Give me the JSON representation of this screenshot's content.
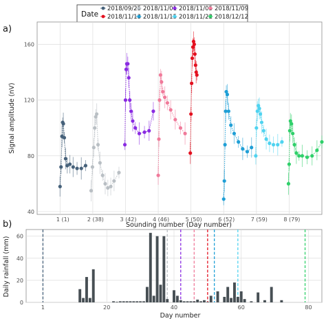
{
  "chart_data": [
    {
      "panel_label": "a)",
      "type": "line",
      "xlabel": "Sounding number (Day number)",
      "ylabel": "Signal amplitude (nV)",
      "xlim": [
        0.3,
        9
      ],
      "ylim": [
        38,
        176
      ],
      "yticks": [
        40,
        80,
        120,
        160
      ],
      "xtick_labels": [
        {
          "x": 1,
          "label": "1 (1)"
        },
        {
          "x": 2,
          "label": "2 (38)"
        },
        {
          "x": 3,
          "label": "3 (42)"
        },
        {
          "x": 4,
          "label": "4 (46)"
        },
        {
          "x": 5,
          "label": "5 (50)"
        },
        {
          "x": 6,
          "label": "6 (52)"
        },
        {
          "x": 7,
          "label": "7 (59)"
        },
        {
          "x": 8,
          "label": "8 (79)"
        }
      ],
      "grid": true,
      "legend": {
        "title": "Date",
        "position": "top",
        "entries": [
          {
            "label": "2018/09/25",
            "color": "#46617a"
          },
          {
            "label": "2018/11/01",
            "color": "#b9bfc4"
          },
          {
            "label": "2018/11/05",
            "color": "#8a2be2"
          },
          {
            "label": "2018/11/09",
            "color": "#f07a9a"
          },
          {
            "label": "2018/11/13",
            "color": "#e3101f"
          },
          {
            "label": "2018/11/15",
            "color": "#1f9fd6"
          },
          {
            "label": "2018/11/22",
            "color": "#4fd3f0"
          },
          {
            "label": "2018/12/12",
            "color": "#2fd06a"
          }
        ]
      },
      "series": [
        {
          "name": "2018/09/25",
          "color": "#46617a",
          "x": [
            1.0,
            1.03,
            1.06,
            1.08,
            1.1,
            1.13,
            1.17,
            1.22,
            1.3,
            1.4,
            1.52,
            1.65,
            1.78
          ],
          "y": [
            58,
            72,
            94,
            104,
            103,
            93,
            78,
            73,
            74,
            72,
            71,
            71,
            73
          ]
        },
        {
          "name": "2018/11/01",
          "color": "#b9bfc4",
          "x": [
            1.95,
            1.99,
            2.03,
            2.06,
            2.09,
            2.12,
            2.16,
            2.22,
            2.3,
            2.38,
            2.46,
            2.55,
            2.65,
            2.8
          ],
          "y": [
            55,
            72,
            86,
            100,
            108,
            110,
            88,
            75,
            66,
            60,
            57,
            58,
            62,
            68
          ]
        },
        {
          "name": "2018/11/05",
          "color": "#8a2be2",
          "x": [
            2.98,
            3.0,
            3.02,
            3.04,
            3.07,
            3.1,
            3.13,
            3.17,
            3.22,
            3.3,
            3.42,
            3.58,
            3.72,
            3.85
          ],
          "y": [
            88,
            120,
            142,
            146,
            146,
            136,
            120,
            112,
            105,
            100,
            96,
            97,
            98,
            112
          ]
        },
        {
          "name": "2018/11/09",
          "color": "#f07a9a",
          "x": [
            4.0,
            4.02,
            4.04,
            4.07,
            4.1,
            4.14,
            4.2,
            4.28,
            4.38,
            4.52,
            4.68,
            4.82
          ],
          "y": [
            66,
            92,
            120,
            138,
            133,
            126,
            122,
            118,
            113,
            106,
            100,
            96
          ]
        },
        {
          "name": "2018/11/13",
          "color": "#e3101f",
          "x": [
            4.98,
            5.0,
            5.02,
            5.04,
            5.06,
            5.08,
            5.1,
            5.12,
            5.14,
            5.16,
            5.18
          ],
          "y": [
            82,
            110,
            132,
            150,
            158,
            162,
            160,
            153,
            145,
            140,
            138
          ]
        },
        {
          "name": "2018/11/15",
          "color": "#1f9fd6",
          "x": [
            6.0,
            6.02,
            6.04,
            6.06,
            6.08,
            6.11,
            6.15,
            6.22,
            6.32,
            6.45,
            6.58,
            6.72,
            6.85
          ],
          "y": [
            49,
            62,
            88,
            112,
            126,
            124,
            112,
            102,
            96,
            90,
            85,
            83,
            86
          ]
        },
        {
          "name": "2018/11/22",
          "color": "#4fd3f0",
          "x": [
            6.98,
            7.0,
            7.03,
            7.06,
            7.09,
            7.12,
            7.16,
            7.22,
            7.3,
            7.4,
            7.52,
            7.65,
            7.78
          ],
          "y": [
            80,
            100,
            112,
            116,
            114,
            110,
            104,
            98,
            92,
            89,
            88,
            88,
            90
          ]
        },
        {
          "name": "2018/12/12",
          "color": "#2fd06a",
          "x": [
            7.98,
            8.0,
            8.02,
            8.04,
            8.07,
            8.11,
            8.16,
            8.22,
            8.3,
            8.4,
            8.55,
            8.7,
            8.85,
            9.0
          ],
          "y": [
            60,
            74,
            98,
            105,
            103,
            96,
            88,
            82,
            80,
            80,
            79,
            80,
            84,
            90
          ]
        }
      ]
    },
    {
      "panel_label": "b)",
      "type": "bar",
      "xlabel": "Day number",
      "ylabel": "Daily rainfall (mm)",
      "xlim": [
        -4,
        84
      ],
      "ylim": [
        0,
        66
      ],
      "yticks": [
        0,
        20,
        40,
        60
      ],
      "xticks": [
        1,
        20,
        40,
        60,
        80
      ],
      "grid": true,
      "bars": {
        "days": [
          12,
          13,
          14,
          15,
          16,
          22,
          23,
          24,
          25,
          26,
          27,
          28,
          29,
          30,
          31,
          32,
          33,
          34,
          35,
          36,
          37,
          38,
          40,
          41,
          42,
          43,
          44,
          45,
          46,
          47,
          48,
          49,
          50,
          51,
          53,
          55,
          56,
          57,
          58,
          59,
          60,
          61,
          63,
          65,
          67,
          69,
          72
        ],
        "values": [
          12,
          4,
          23,
          4,
          30,
          1,
          0.5,
          1,
          1,
          1,
          1,
          1,
          1,
          1,
          1,
          14,
          63,
          6,
          60,
          16,
          60,
          3,
          11,
          6,
          2,
          1,
          1,
          1,
          1,
          2.5,
          1,
          2,
          0.5,
          6,
          10,
          5,
          14,
          4,
          18,
          5,
          10,
          3,
          1,
          9,
          2,
          14,
          2
        ],
        "color": "#474f54"
      },
      "vlines": [
        {
          "day": 1,
          "color": "#46617a"
        },
        {
          "day": 38,
          "color": "#b9bfc4"
        },
        {
          "day": 42,
          "color": "#8a2be2"
        },
        {
          "day": 46,
          "color": "#f07a9a"
        },
        {
          "day": 50,
          "color": "#e3101f"
        },
        {
          "day": 52,
          "color": "#1f9fd6"
        },
        {
          "day": 59,
          "color": "#4fd3f0"
        },
        {
          "day": 79,
          "color": "#2fd06a"
        }
      ]
    }
  ]
}
